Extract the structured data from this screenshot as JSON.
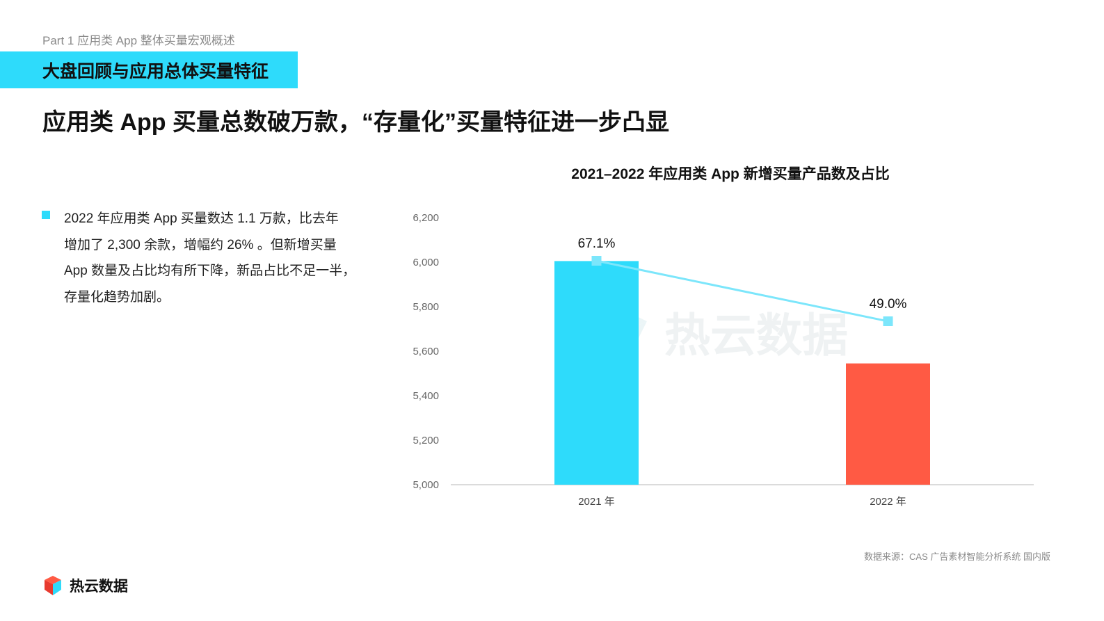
{
  "header": {
    "part_label": "Part 1 应用类 App 整体买量宏观概述",
    "section_title": "大盘回顾与应用总体买量特征",
    "headline": "应用类 App 买量总数破万款，“存量化”买量特征进一步凸显"
  },
  "bullet": {
    "lines": [
      "2022 年应用类 App 买量数达 1.1 万款，比去年",
      "增加了 2,300 余款，增幅约 26% 。但新增买量",
      "App 数量及占比均有所下降，新品占比不足一半，",
      "存量化趋势加剧。"
    ]
  },
  "colors": {
    "accent": "#2edbfb",
    "bar_2021": "#2edbfb",
    "bar_2022": "#ff5a44",
    "line": "#7ce6fb"
  },
  "chart_data": {
    "type": "bar",
    "title": "2021–2022 年应用类 App 新增买量产品数及占比",
    "categories": [
      "2021 年",
      "2022 年"
    ],
    "values": [
      6005,
      5545
    ],
    "ylim": [
      5000,
      6200
    ],
    "yticks": [
      5000,
      5200,
      5400,
      5600,
      5800,
      6000,
      6200
    ],
    "ytick_labels": [
      "5,000",
      "5,200",
      "5,400",
      "5,600",
      "5,800",
      "6,000",
      "6,200"
    ],
    "grid": false,
    "line_series": {
      "values": [
        67.1,
        49.0
      ],
      "labels": [
        "67.1%",
        "49.0%"
      ]
    }
  },
  "watermark": "热云数据",
  "footer": {
    "source": "数据来源：CAS 广告素材智能分析系统 国内版",
    "logo_text": "热云数据"
  }
}
